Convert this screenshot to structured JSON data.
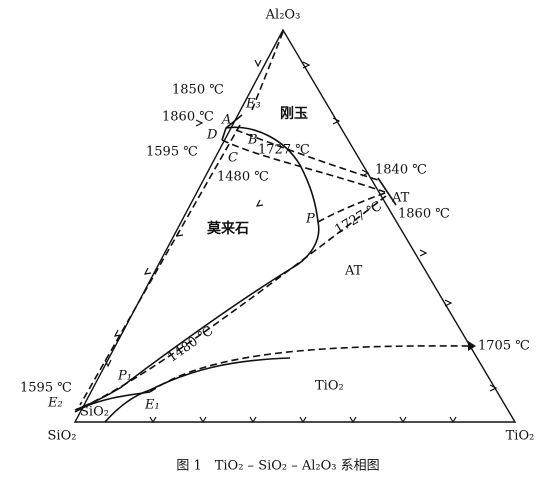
{
  "vertices": {
    "top": "Al₂O₃",
    "left": "SiO₂",
    "right": "TiO₂"
  },
  "labels": [
    "1850 ℃",
    "E₃",
    "1860 ℃",
    "A",
    "D",
    "B",
    "1595 ℃",
    "C",
    "1727 ℃",
    "1480 ℃",
    "刚玉",
    "1840 ℃",
    "AT",
    "1860 ℃",
    "莫来石",
    "P",
    "1727 ℃",
    "AT",
    "1480 ℃",
    "1705 ℃",
    "1595 ℃",
    "P₁",
    "E₂",
    "SiO₂",
    "E₁",
    "TiO₂"
  ],
  "caption": "图 1　TiO₂ – SiO₂ – Al₂O₃ 系相图"
}
